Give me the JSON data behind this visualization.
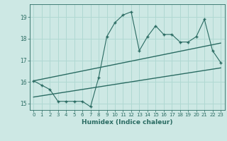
{
  "xlabel": "Humidex (Indice chaleur)",
  "background_color": "#cde8e4",
  "line_color": "#2a6b62",
  "grid_color": "#b0d8d2",
  "xlim": [
    -0.5,
    23.5
  ],
  "ylim": [
    14.7,
    19.6
  ],
  "yticks": [
    15,
    16,
    17,
    18,
    19
  ],
  "xticks": [
    0,
    1,
    2,
    3,
    4,
    5,
    6,
    7,
    8,
    9,
    10,
    11,
    12,
    13,
    14,
    15,
    16,
    17,
    18,
    19,
    20,
    21,
    22,
    23
  ],
  "main_x": [
    0,
    1,
    2,
    3,
    4,
    5,
    6,
    7,
    8,
    9,
    10,
    11,
    12,
    13,
    14,
    15,
    16,
    17,
    18,
    19,
    20,
    21,
    22,
    23
  ],
  "main_y": [
    16.05,
    15.85,
    15.65,
    15.1,
    15.1,
    15.1,
    15.1,
    14.85,
    16.2,
    18.1,
    18.75,
    19.1,
    19.25,
    17.45,
    18.1,
    18.6,
    18.2,
    18.2,
    17.85,
    17.85,
    18.1,
    18.9,
    17.45,
    16.9
  ],
  "trend1_x": [
    0,
    23
  ],
  "trend1_y": [
    15.3,
    16.65
  ],
  "trend2_x": [
    0,
    23
  ],
  "trend2_y": [
    16.05,
    17.8
  ]
}
